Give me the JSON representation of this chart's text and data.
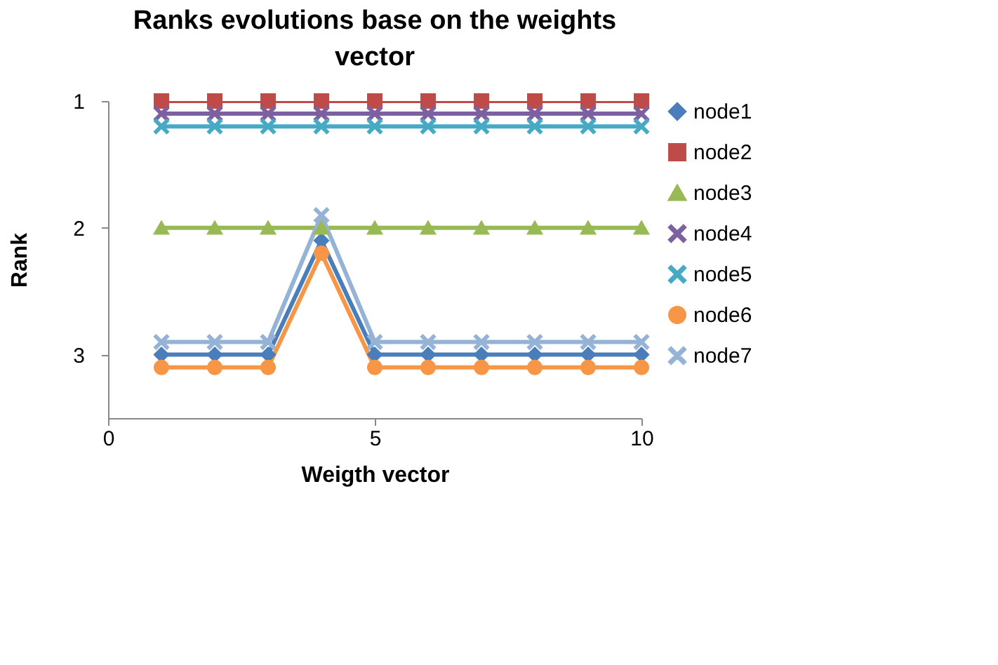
{
  "chart_data": {
    "type": "line",
    "title": "Ranks evolutions base on the weights vector",
    "xlabel": "Weigth vector",
    "ylabel": "Rank",
    "x": [
      1,
      2,
      3,
      4,
      5,
      6,
      7,
      8,
      9,
      10
    ],
    "xlim": [
      0,
      10
    ],
    "xticks": [
      0,
      5,
      10
    ],
    "ylim": [
      3.5,
      1
    ],
    "yticks": [
      {
        "value": 1,
        "label": "1"
      },
      {
        "value": 2,
        "label": "2"
      },
      {
        "value": 3,
        "label": "3"
      }
    ],
    "grid": false,
    "legend": "right",
    "series": [
      {
        "name": "node1",
        "color": "#4a7ebb",
        "marker": "diamond",
        "values": [
          3,
          3,
          3,
          2.1,
          3,
          3,
          3,
          3,
          3,
          3
        ]
      },
      {
        "name": "node2",
        "color": "#be4b48",
        "marker": "square",
        "values": [
          1,
          1,
          1,
          1,
          1,
          1,
          1,
          1,
          1,
          1
        ]
      },
      {
        "name": "node3",
        "color": "#98b954",
        "marker": "triangle",
        "values": [
          2,
          2,
          2,
          2,
          2,
          2,
          2,
          2,
          2,
          2
        ]
      },
      {
        "name": "node4",
        "color": "#7d60a0",
        "marker": "cross",
        "values": [
          1.1,
          1.1,
          1.1,
          1.1,
          1.1,
          1.1,
          1.1,
          1.1,
          1.1,
          1.1
        ]
      },
      {
        "name": "node5",
        "color": "#46aac5",
        "marker": "cross",
        "values": [
          1.2,
          1.2,
          1.2,
          1.2,
          1.2,
          1.2,
          1.2,
          1.2,
          1.2,
          1.2
        ]
      },
      {
        "name": "node6",
        "color": "#f79646",
        "marker": "circle",
        "values": [
          3.1,
          3.1,
          3.1,
          2.2,
          3.1,
          3.1,
          3.1,
          3.1,
          3.1,
          3.1
        ]
      },
      {
        "name": "node7",
        "color": "#95b3d7",
        "marker": "cross",
        "values": [
          2.9,
          2.9,
          2.9,
          1.9,
          2.9,
          2.9,
          2.9,
          2.9,
          2.9,
          2.9
        ]
      }
    ]
  }
}
